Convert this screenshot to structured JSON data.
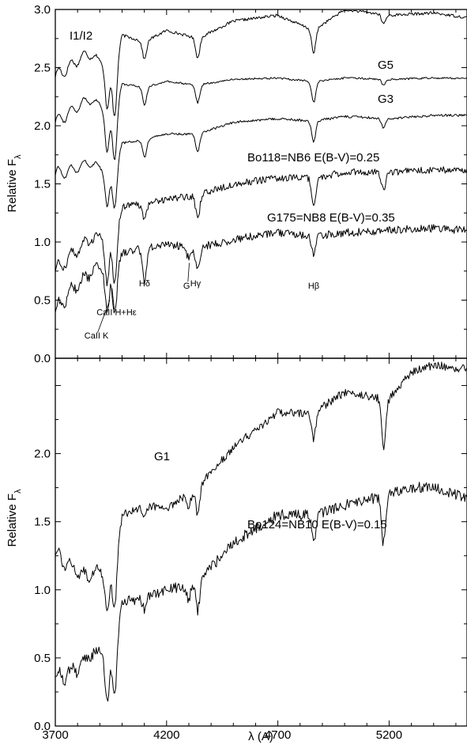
{
  "chart_data": [
    {
      "type": "line",
      "panel": "top",
      "ylabel": "Relative F",
      "ylabel_subscript": "λ",
      "ylim": [
        0.0,
        3.0
      ],
      "xlim": [
        3700,
        5550
      ],
      "yticks": [
        0.0,
        0.5,
        1.0,
        1.5,
        2.0,
        2.5,
        3.0
      ],
      "ytick_labels": [
        "0.0",
        "0.5",
        "1.0",
        "1.5",
        "2.0",
        "2.5",
        "3.0"
      ],
      "xticks": [
        3700,
        4200,
        4700,
        5200
      ],
      "series": [
        {
          "name": "I1/I2",
          "x": [
            3700,
            3780,
            3840,
            3900,
            3960,
            4000,
            4100,
            4200,
            4340,
            4500,
            4700,
            4861,
            5000,
            5200,
            5400,
            5550
          ],
          "y": [
            2.42,
            2.53,
            2.62,
            2.57,
            2.42,
            2.78,
            2.72,
            2.82,
            2.75,
            2.9,
            2.95,
            2.82,
            3.0,
            2.95,
            2.97,
            2.93
          ],
          "dips": [
            [
              3933,
              0.35
            ],
            [
              3968,
              0.4
            ],
            [
              4101,
              0.15
            ],
            [
              4340,
              0.17
            ],
            [
              4861,
              0.2
            ],
            [
              5175,
              0.08
            ]
          ],
          "noise": 0.012
        },
        {
          "name": "G5",
          "x": [
            3700,
            3780,
            3840,
            3900,
            3960,
            4000,
            4100,
            4200,
            4340,
            4500,
            4700,
            4861,
            5000,
            5200,
            5400,
            5550
          ],
          "y": [
            2.03,
            2.13,
            2.22,
            2.19,
            2.05,
            2.36,
            2.33,
            2.38,
            2.35,
            2.4,
            2.41,
            2.38,
            2.41,
            2.4,
            2.41,
            2.41
          ],
          "dips": [
            [
              3933,
              0.35
            ],
            [
              3968,
              0.4
            ],
            [
              4101,
              0.15
            ],
            [
              4340,
              0.15
            ],
            [
              4861,
              0.18
            ],
            [
              5175,
              0.05
            ]
          ],
          "noise": 0.008
        },
        {
          "name": "G3",
          "x": [
            3700,
            3780,
            3840,
            3900,
            3960,
            4000,
            4100,
            4200,
            4340,
            4500,
            4700,
            4861,
            5000,
            5200,
            5400,
            5550
          ],
          "y": [
            1.58,
            1.62,
            1.68,
            1.65,
            1.55,
            1.85,
            1.88,
            1.93,
            1.93,
            2.03,
            2.06,
            2.04,
            2.08,
            2.06,
            2.09,
            2.09
          ],
          "dips": [
            [
              3933,
              0.3
            ],
            [
              3968,
              0.3
            ],
            [
              4101,
              0.15
            ],
            [
              4340,
              0.15
            ],
            [
              4861,
              0.18
            ],
            [
              5175,
              0.08
            ]
          ],
          "noise": 0.01
        },
        {
          "name": "Bo118=NB6  E(B-V)=0.25",
          "x": [
            3700,
            3780,
            3840,
            3900,
            3960,
            4000,
            4100,
            4200,
            4340,
            4500,
            4700,
            4861,
            5000,
            5200,
            5400,
            5550
          ],
          "y": [
            0.75,
            0.9,
            1.0,
            1.05,
            1.0,
            1.3,
            1.33,
            1.37,
            1.4,
            1.5,
            1.55,
            1.55,
            1.6,
            1.6,
            1.62,
            1.62
          ],
          "dips": [
            [
              3933,
              0.4
            ],
            [
              3968,
              0.4
            ],
            [
              4101,
              0.15
            ],
            [
              4340,
              0.2
            ],
            [
              4861,
              0.25
            ],
            [
              5175,
              0.15
            ]
          ],
          "noise": 0.03
        },
        {
          "name": "G175=NB8  E(B-V)=0.35",
          "x": [
            3700,
            3780,
            3840,
            3900,
            3960,
            4000,
            4100,
            4200,
            4340,
            4500,
            4700,
            4861,
            5000,
            5200,
            5400,
            5550
          ],
          "y": [
            0.4,
            0.6,
            0.7,
            0.8,
            0.7,
            0.9,
            0.95,
            0.98,
            0.95,
            1.02,
            1.08,
            1.05,
            1.08,
            1.1,
            1.12,
            1.1
          ],
          "dips": [
            [
              3933,
              0.35
            ],
            [
              3968,
              0.35
            ],
            [
              4101,
              0.3
            ],
            [
              4300,
              0.1
            ],
            [
              4340,
              0.2
            ],
            [
              4861,
              0.15
            ]
          ],
          "noise": 0.035
        }
      ],
      "annotations": [
        {
          "text": "Hδ",
          "x": 4101,
          "y": 0.62
        },
        {
          "text": "G",
          "x": 4290,
          "y": 0.6
        },
        {
          "text": "Hγ",
          "x": 4330,
          "y": 0.62
        },
        {
          "text": "Hβ",
          "x": 4861,
          "y": 0.6
        },
        {
          "text": "CaII H+Hε",
          "x": 3975,
          "y": 0.37
        },
        {
          "text": "CaII K",
          "x": 3885,
          "y": 0.17
        }
      ]
    },
    {
      "type": "line",
      "panel": "bottom",
      "xlabel": "λ (A)",
      "ylabel": "Relative F",
      "ylabel_subscript": "λ",
      "ylim": [
        0.0,
        2.7
      ],
      "xlim": [
        3700,
        5550
      ],
      "yticks": [
        0.0,
        0.5,
        1.0,
        1.5,
        2.0
      ],
      "ytick_labels": [
        "0.0",
        "0.5",
        "1.0",
        "1.5",
        "2.0"
      ],
      "xticks": [
        3700,
        4200,
        4700,
        5200
      ],
      "xtick_labels": [
        "3700",
        "4200",
        "4700",
        "5200"
      ],
      "series": [
        {
          "name": "G1",
          "x": [
            3700,
            3780,
            3840,
            3900,
            3960,
            4000,
            4100,
            4200,
            4340,
            4500,
            4700,
            4861,
            5000,
            5200,
            5300,
            5400,
            5550
          ],
          "y": [
            1.25,
            1.15,
            1.1,
            1.15,
            1.1,
            1.55,
            1.62,
            1.6,
            1.75,
            2.05,
            2.3,
            2.3,
            2.45,
            2.4,
            2.6,
            2.65,
            2.62
          ],
          "dips": [
            [
              3933,
              0.3
            ],
            [
              3968,
              0.3
            ],
            [
              4101,
              0.1
            ],
            [
              4300,
              0.1
            ],
            [
              4340,
              0.2
            ],
            [
              4861,
              0.2
            ],
            [
              5175,
              0.35
            ]
          ],
          "noise": 0.03
        },
        {
          "name": "Bo124=NB10  E(B-V)=0.15",
          "x": [
            3700,
            3780,
            3840,
            3900,
            3960,
            4000,
            4100,
            4200,
            4340,
            4500,
            4700,
            4861,
            5000,
            5200,
            5300,
            5400,
            5550
          ],
          "y": [
            0.35,
            0.4,
            0.5,
            0.55,
            0.5,
            0.9,
            0.95,
            1.0,
            1.05,
            1.35,
            1.55,
            1.55,
            1.62,
            1.7,
            1.75,
            1.75,
            1.68
          ],
          "dips": [
            [
              3933,
              0.35
            ],
            [
              3968,
              0.35
            ],
            [
              4101,
              0.1
            ],
            [
              4300,
              0.1
            ],
            [
              4340,
              0.2
            ],
            [
              4861,
              0.2
            ],
            [
              5175,
              0.35
            ]
          ],
          "noise": 0.04
        }
      ]
    }
  ]
}
